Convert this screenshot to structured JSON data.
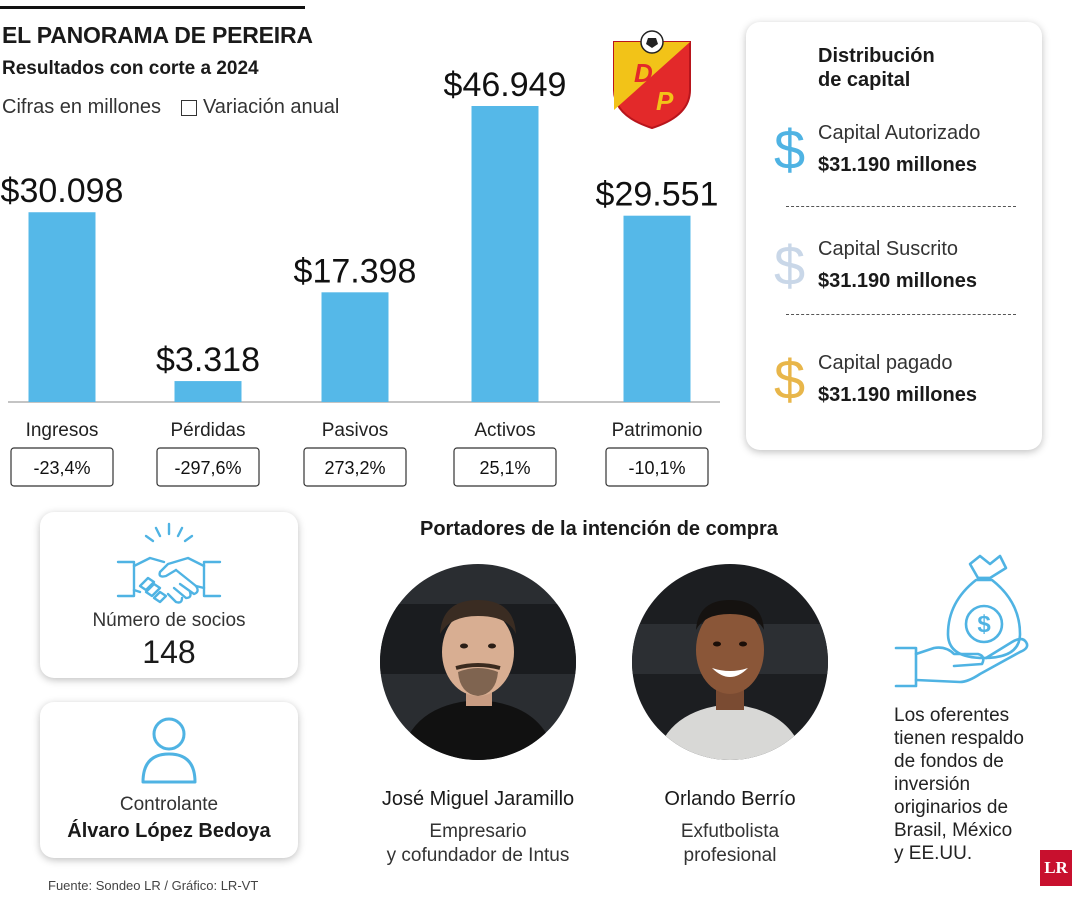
{
  "header": {
    "title": "EL PANORAMA DE PEREIRA",
    "subtitle": "Resultados con corte a 2024",
    "units": "Cifras en millones",
    "legend_label": "Variación anual"
  },
  "chart_data": {
    "type": "bar",
    "categories": [
      "Ingresos",
      "Pérdidas",
      "Pasivos",
      "Activos",
      "Patrimonio"
    ],
    "values": [
      30098,
      3318,
      17398,
      46949,
      29551
    ],
    "value_labels": [
      "$30.098",
      "$3.318",
      "$17.398",
      "$46.949",
      "$29.551"
    ],
    "annual_variation": [
      "-23,4%",
      "-297,6%",
      "273,2%",
      "25,1%",
      "-10,1%"
    ],
    "title": "EL PANORAMA DE PEREIRA",
    "subtitle": "Resultados con corte a 2024",
    "ylim": [
      0,
      46949
    ],
    "bar_color": "#55b8e8",
    "grid": false
  },
  "capital": {
    "title_line1": "Distribución",
    "title_line2": "de capital",
    "items": [
      {
        "name": "Capital Autorizado",
        "amount": "$31.190 millones",
        "icon": "dollar-icon",
        "color": "#4fb3e3"
      },
      {
        "name": "Capital Suscrito",
        "amount": "$31.190 millones",
        "icon": "dollar-icon",
        "color": "#c9d7e8"
      },
      {
        "name": "Capital pagado",
        "amount": "$31.190 millones",
        "icon": "dollar-icon",
        "color": "#e8b64a"
      }
    ]
  },
  "socios": {
    "label": "Número de socios",
    "value": "148",
    "icon": "handshake-icon"
  },
  "controlante": {
    "label": "Controlante",
    "name": "Álvaro López Bedoya",
    "icon": "person-icon"
  },
  "buyers": {
    "title": "Portadores de la intención de compra",
    "people": [
      {
        "name": "José Miguel Jaramillo",
        "role_line1": "Empresario",
        "role_line2": "y cofundador de Intus"
      },
      {
        "name": "Orlando Berrío",
        "role_line1": "Exfutbolista",
        "role_line2": "profesional"
      }
    ]
  },
  "funds": {
    "lines": [
      "Los oferentes",
      "tienen respaldo",
      "de fondos de",
      "inversión",
      "originarios de",
      "Brasil, México",
      "y EE.UU."
    ],
    "icon": "money-bag-hand-icon"
  },
  "source": "Fuente: Sondeo LR / Gráfico: LR-VT",
  "brand_logo": "LR",
  "club_logo_letters": [
    "D",
    "P"
  ],
  "colors": {
    "accent_blue": "#55b8e8",
    "icon_blue": "#4fb3e3",
    "gold": "#e8b64a",
    "brand_red": "#c8102e"
  }
}
